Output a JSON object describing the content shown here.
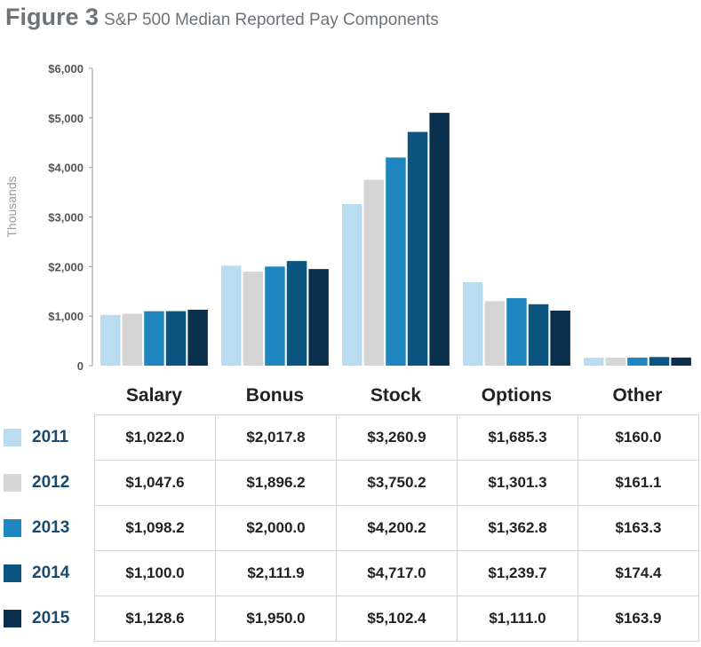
{
  "header": {
    "figure_label": "Figure 3",
    "title": "S&P 500 Median Reported Pay Components"
  },
  "chart_data": {
    "type": "bar",
    "ylabel": "Thousands",
    "ylim": [
      0,
      6000
    ],
    "yticks": [
      0,
      1000,
      2000,
      3000,
      4000,
      5000,
      6000
    ],
    "ytick_labels": [
      "0",
      "$1,000",
      "$2,000",
      "$3,000",
      "$4,000",
      "$5,000",
      "$6,000"
    ],
    "categories": [
      "Salary",
      "Bonus",
      "Stock",
      "Options",
      "Other"
    ],
    "series": [
      {
        "name": "2011",
        "color": "#b9dcf0",
        "values": [
          1022.0,
          2017.8,
          3260.9,
          1685.3,
          160.0
        ]
      },
      {
        "name": "2012",
        "color": "#d5d5d5",
        "values": [
          1047.6,
          1896.2,
          3750.2,
          1301.3,
          161.1
        ]
      },
      {
        "name": "2013",
        "color": "#1f86bf",
        "values": [
          1098.2,
          2000.0,
          4200.2,
          1362.8,
          163.3
        ]
      },
      {
        "name": "2014",
        "color": "#0b5580",
        "values": [
          1100.0,
          2111.9,
          4717.0,
          1239.7,
          174.4
        ]
      },
      {
        "name": "2015",
        "color": "#0a304e",
        "values": [
          1128.6,
          1950.0,
          5102.4,
          1111.0,
          163.9
        ]
      }
    ],
    "table": {
      "rows": [
        [
          "$1,022.0",
          "$2,017.8",
          "$3,260.9",
          "$1,685.3",
          "$160.0"
        ],
        [
          "$1,047.6",
          "$1,896.2",
          "$3,750.2",
          "$1,301.3",
          "$161.1"
        ],
        [
          "$1,098.2",
          "$2,000.0",
          "$4,200.2",
          "$1,362.8",
          "$163.3"
        ],
        [
          "$1,100.0",
          "$2,111.9",
          "$4,717.0",
          "$1,239.7",
          "$174.4"
        ],
        [
          "$1,128.6",
          "$1,950.0",
          "$5,102.4",
          "$1,111.0",
          "$163.9"
        ]
      ]
    }
  }
}
